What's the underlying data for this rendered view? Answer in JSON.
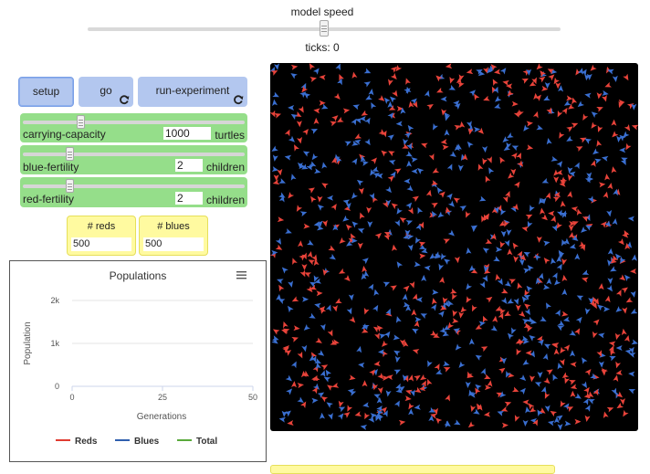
{
  "speed": {
    "label": "model speed",
    "ticks_label": "ticks: 0",
    "level": 0.5
  },
  "buttons": {
    "setup": "setup",
    "go": "go",
    "run_experiment": "run-experiment"
  },
  "sliders": [
    {
      "name": "carrying-capacity",
      "value": "1000",
      "units": "turtles",
      "position": 0.26
    },
    {
      "name": "blue-fertility",
      "value": "2",
      "units": "children",
      "position": 0.21
    },
    {
      "name": "red-fertility",
      "value": "2",
      "units": "children",
      "position": 0.21
    }
  ],
  "monitors": {
    "reds": {
      "label": "# reds",
      "value": "500"
    },
    "blues": {
      "label": "# blues",
      "value": "500"
    }
  },
  "chart_data": {
    "type": "line",
    "title": "Populations",
    "xlabel": "Generations",
    "ylabel": "Population",
    "xlim": [
      0,
      50
    ],
    "ylim": [
      0,
      2000
    ],
    "x_ticks": [
      "0",
      "25",
      "50"
    ],
    "y_ticks": [
      "0",
      "1k",
      "2k"
    ],
    "series": [
      {
        "name": "Reds",
        "color": "#e03c31",
        "values": []
      },
      {
        "name": "Blues",
        "color": "#2f5fae",
        "values": []
      },
      {
        "name": "Total",
        "color": "#5aaa3c",
        "values": []
      }
    ],
    "legend": "bottom",
    "menu_icon": "hamburger-menu-icon"
  },
  "world": {
    "background": "#000000",
    "red_color": "#e8433a",
    "blue_color": "#3a6fd1",
    "red_count": 500,
    "blue_count": 500
  }
}
